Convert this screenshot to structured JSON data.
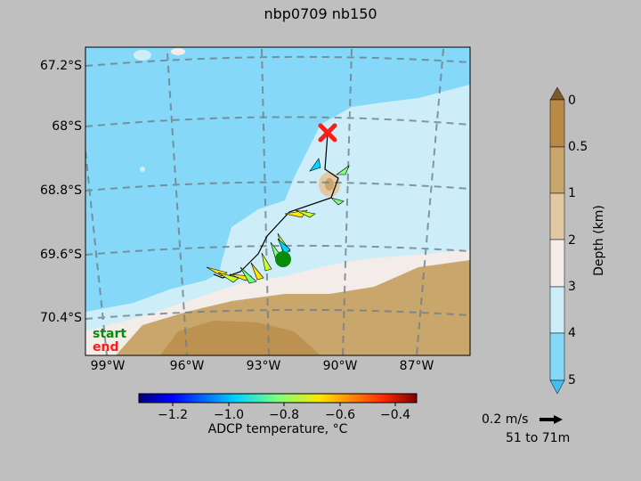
{
  "chart_data": {
    "type": "map",
    "title": "nbp0709 nb150",
    "lat_ticks": [
      "67.2°S",
      "68°S",
      "68.8°S",
      "69.6°S",
      "70.4°S"
    ],
    "lon_ticks": [
      "99°W",
      "96°W",
      "93°W",
      "90°W",
      "87°W"
    ],
    "legend": {
      "start": "start",
      "end": "end"
    },
    "temp_colorbar": {
      "label": "ADCP temperature, °C",
      "ticks": [
        "−1.2",
        "−1.0",
        "−0.8",
        "−0.6",
        "−0.4"
      ],
      "range": [
        -1.35,
        -0.35
      ]
    },
    "depth_colorbar": {
      "label": "Depth (km)",
      "ticks": [
        "0",
        "0.5",
        "1",
        "2",
        "3",
        "4",
        "5"
      ],
      "colors": [
        "#7a5a2a",
        "#b88a45",
        "#c9a66b",
        "#e3c9a3",
        "#f3ece8",
        "#cdeef8",
        "#85d8f7",
        "#42c1ef"
      ]
    },
    "quiver_key": {
      "label": "0.2 m/s",
      "range": "51 to 71m"
    },
    "track_start": {
      "lon": -93.9,
      "lat": -69.95
    },
    "track_end": {
      "lon": -90.3,
      "lat": -68.05
    }
  }
}
